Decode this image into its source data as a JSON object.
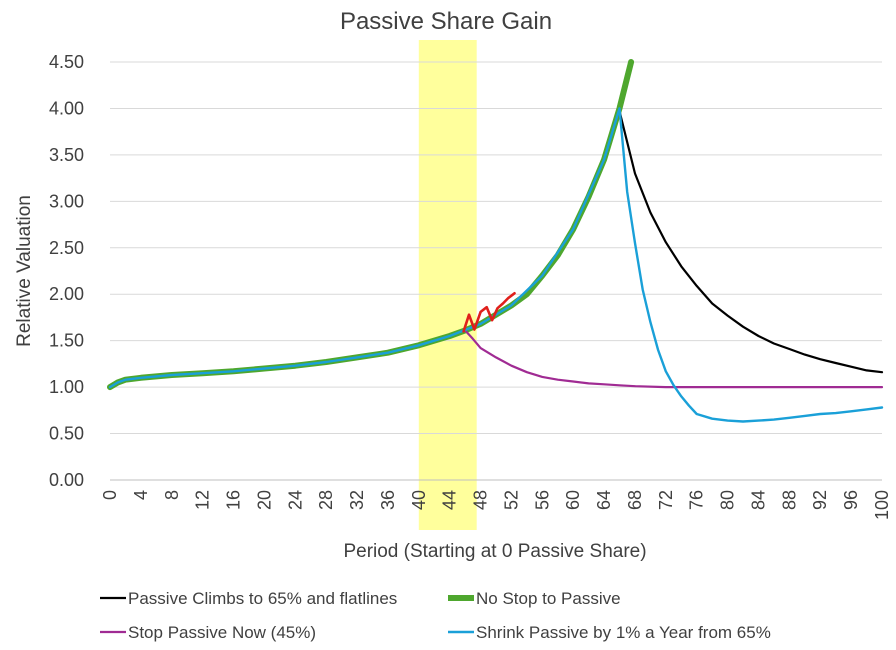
{
  "chart_data": {
    "type": "line",
    "title": "Passive Share Gain",
    "xlabel": "Period (Starting at 0 Passive Share)",
    "ylabel": "Relative Valuation",
    "xlim": [
      0,
      100
    ],
    "ylim": [
      0,
      4.5
    ],
    "x_ticks": [
      "0",
      "4",
      "8",
      "12",
      "16",
      "20",
      "24",
      "28",
      "32",
      "36",
      "40",
      "44",
      "48",
      "52",
      "56",
      "60",
      "64",
      "68",
      "72",
      "76",
      "80",
      "84",
      "88",
      "92",
      "96",
      "100"
    ],
    "y_ticks": [
      "0.00",
      "0.50",
      "1.00",
      "1.50",
      "2.00",
      "2.50",
      "3.00",
      "3.50",
      "4.00",
      "4.50"
    ],
    "grid": "horizontal",
    "legend": "bottom",
    "highlight_band": {
      "x_start": 40,
      "x_end": 47.5,
      "color": "#ffff9c"
    },
    "series": [
      {
        "name": "Passive Climbs to 65% and flatlines",
        "color": "#000000",
        "x": [
          66,
          68,
          70,
          72,
          74,
          76,
          78,
          80,
          82,
          84,
          86,
          88,
          90,
          92,
          94,
          96,
          98,
          100
        ],
        "y": [
          3.97,
          3.3,
          2.88,
          2.56,
          2.3,
          2.09,
          1.9,
          1.77,
          1.65,
          1.55,
          1.47,
          1.41,
          1.35,
          1.3,
          1.26,
          1.22,
          1.18,
          1.16
        ]
      },
      {
        "name": "No Stop to Passive",
        "color": "#4ea72e",
        "x": [
          0,
          1,
          2,
          4,
          8,
          12,
          16,
          20,
          24,
          28,
          32,
          36,
          40,
          44,
          46,
          48,
          50,
          52,
          54,
          56,
          58,
          60,
          62,
          64,
          66,
          67.5
        ],
        "y": [
          1.0,
          1.05,
          1.08,
          1.1,
          1.13,
          1.15,
          1.17,
          1.2,
          1.23,
          1.27,
          1.32,
          1.37,
          1.45,
          1.55,
          1.61,
          1.68,
          1.78,
          1.88,
          2.0,
          2.2,
          2.42,
          2.7,
          3.05,
          3.45,
          4.0,
          4.5
        ]
      },
      {
        "name": "Stop Passive Now (45%)",
        "color": "#a02b93",
        "x": [
          46,
          47,
          48,
          50,
          52,
          54,
          56,
          58,
          60,
          62,
          64,
          66,
          68,
          72,
          76,
          80,
          84,
          88,
          92,
          96,
          100
        ],
        "y": [
          1.61,
          1.52,
          1.42,
          1.32,
          1.23,
          1.16,
          1.11,
          1.08,
          1.06,
          1.04,
          1.03,
          1.02,
          1.01,
          1.0,
          1.0,
          1.0,
          1.0,
          1.0,
          1.0,
          1.0,
          1.0
        ]
      },
      {
        "name": "Shrink Passive by 1% a Year from 65%",
        "color": "#1aa0d8",
        "x": [
          0,
          1,
          2,
          4,
          8,
          12,
          16,
          20,
          24,
          28,
          32,
          36,
          40,
          44,
          48,
          52,
          56,
          60,
          64,
          66,
          67,
          68,
          69,
          70,
          71,
          72,
          73,
          74,
          75,
          76,
          78,
          80,
          82,
          84,
          86,
          88,
          90,
          92,
          94,
          96,
          98,
          100
        ],
        "y": [
          1.0,
          1.05,
          1.08,
          1.1,
          1.13,
          1.15,
          1.17,
          1.2,
          1.23,
          1.27,
          1.32,
          1.37,
          1.45,
          1.55,
          1.68,
          1.88,
          2.2,
          2.7,
          3.45,
          4.0,
          3.1,
          2.55,
          2.05,
          1.7,
          1.4,
          1.17,
          1.02,
          0.9,
          0.8,
          0.71,
          0.66,
          0.64,
          0.63,
          0.64,
          0.65,
          0.67,
          0.69,
          0.71,
          0.72,
          0.74,
          0.76,
          0.78
        ]
      },
      {
        "name": "",
        "color": "#e0201b",
        "x": [
          45.8,
          46.5,
          47.2,
          48.0,
          48.8,
          49.5,
          50.2,
          50.9,
          51.6,
          52.4
        ],
        "y": [
          1.6,
          1.78,
          1.62,
          1.81,
          1.86,
          1.72,
          1.85,
          1.9,
          1.96,
          2.01
        ]
      }
    ]
  }
}
